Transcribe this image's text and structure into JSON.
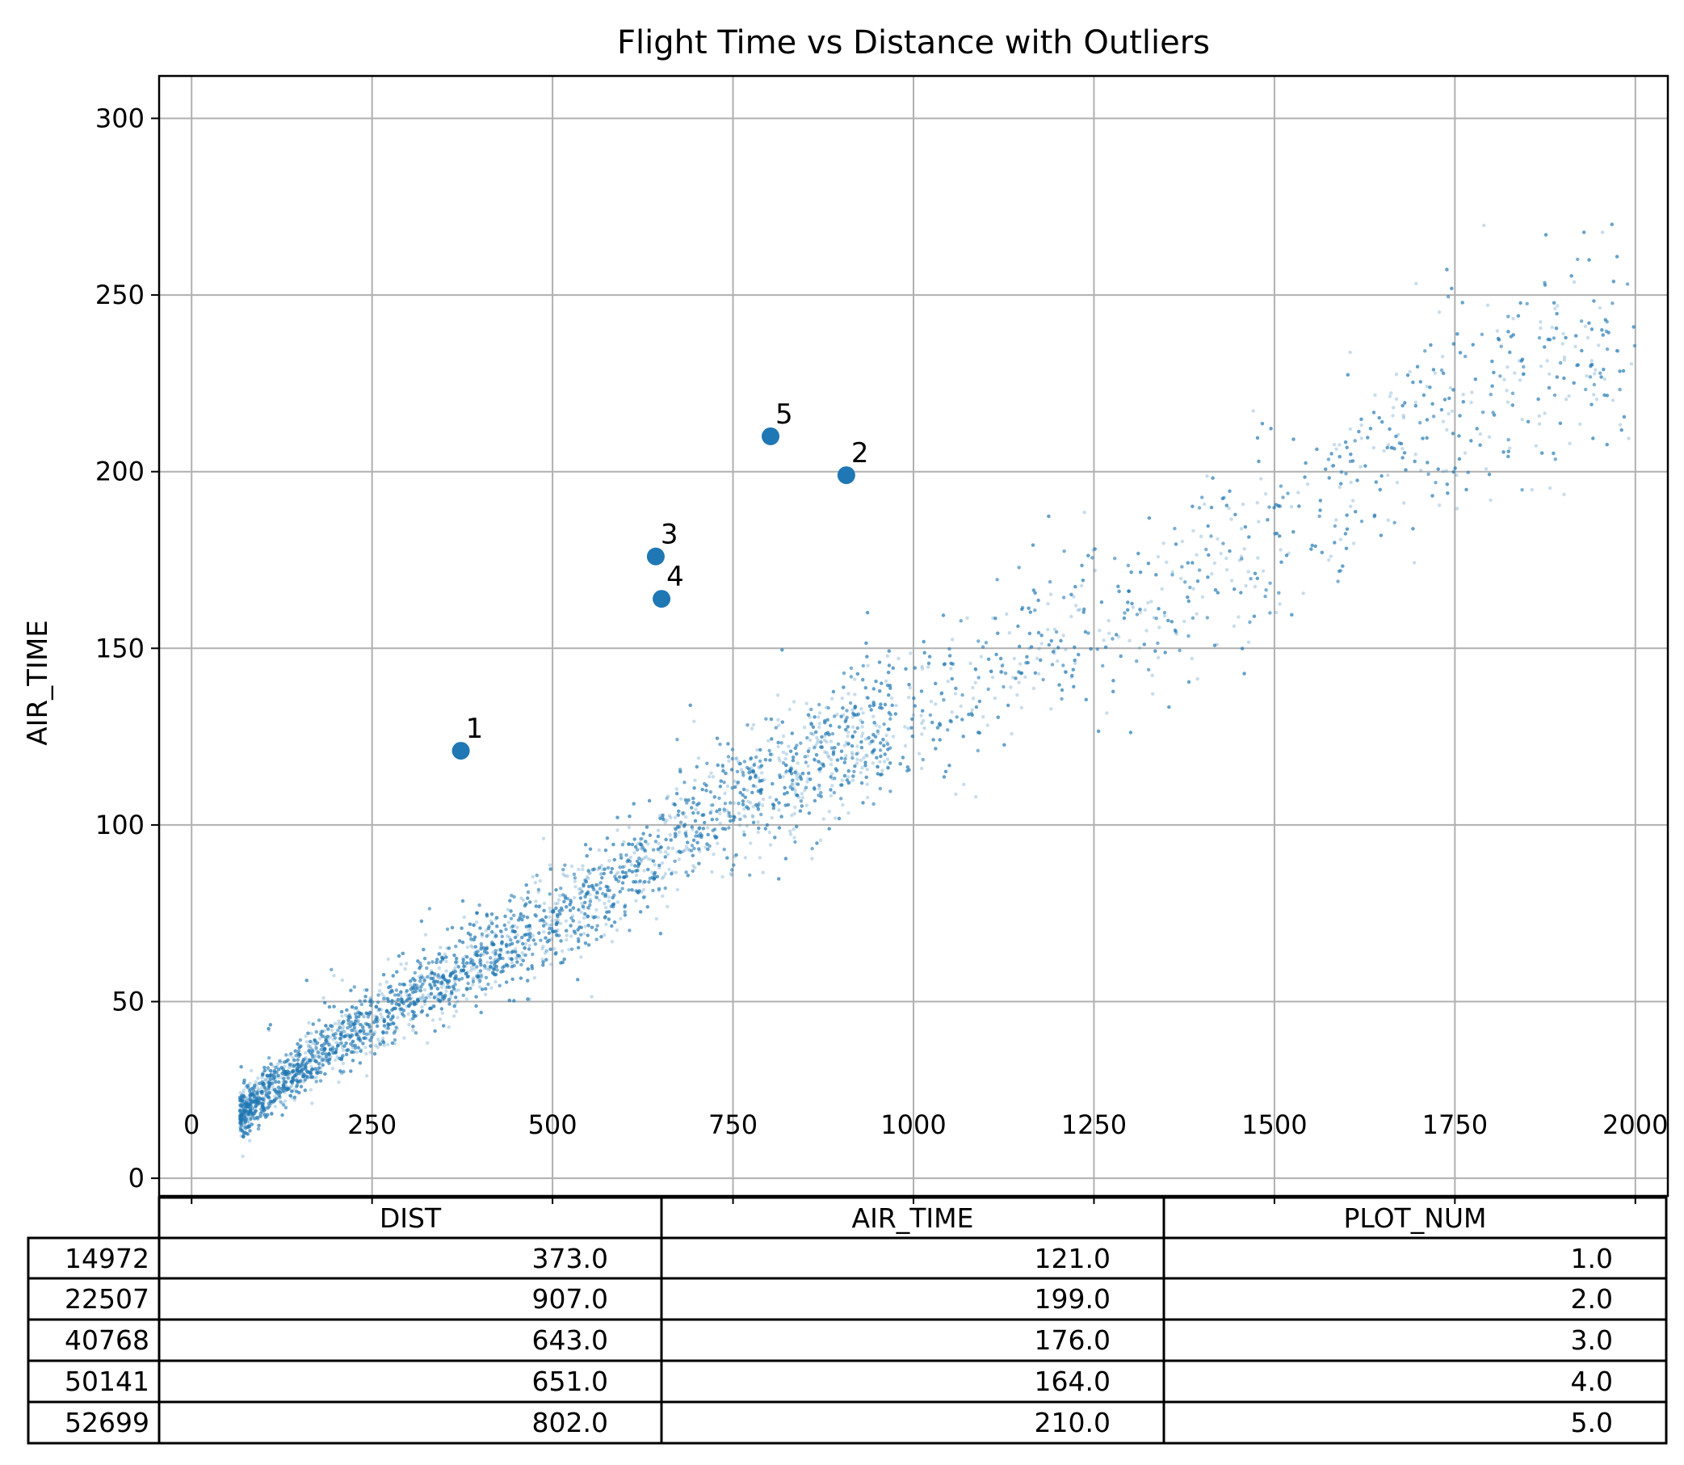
{
  "chart_data": {
    "type": "scatter",
    "title": "Flight Time vs Distance with Outliers",
    "xlabel": "",
    "ylabel": "AIR_TIME",
    "xlim": [
      -45,
      2045
    ],
    "ylim": [
      -5,
      312
    ],
    "xticks": [
      0,
      250,
      500,
      750,
      1000,
      1250,
      1500,
      1750,
      2000
    ],
    "yticks": [
      0,
      50,
      100,
      150,
      200,
      250,
      300
    ],
    "grid": true,
    "colors": {
      "points": "#1f77b4",
      "grid": "#b0b0b0"
    },
    "background_density": {
      "description_of": "dense cloud of flights",
      "anchors": [
        [
          67,
          17
        ],
        [
          100,
          24
        ],
        [
          200,
          38
        ],
        [
          300,
          50
        ],
        [
          400,
          62
        ],
        [
          500,
          72
        ],
        [
          600,
          85
        ],
        [
          700,
          100
        ],
        [
          800,
          110
        ],
        [
          900,
          122
        ],
        [
          1000,
          132
        ],
        [
          1100,
          141
        ],
        [
          1200,
          155
        ],
        [
          1300,
          160
        ],
        [
          1400,
          172
        ],
        [
          1500,
          182
        ],
        [
          1600,
          195
        ],
        [
          1700,
          212
        ],
        [
          1750,
          220
        ],
        [
          1850,
          228
        ],
        [
          1950,
          232
        ],
        [
          2000,
          232
        ]
      ]
    },
    "outliers": [
      {
        "label": "1",
        "x": 373.0,
        "y": 121.0
      },
      {
        "label": "2",
        "x": 907.0,
        "y": 199.0
      },
      {
        "label": "3",
        "x": 643.0,
        "y": 176.0
      },
      {
        "label": "4",
        "x": 651.0,
        "y": 164.0
      },
      {
        "label": "5",
        "x": 802.0,
        "y": 210.0
      }
    ]
  },
  "table": {
    "columns": [
      "DIST",
      "AIR_TIME",
      "PLOT_NUM"
    ],
    "rows": [
      {
        "index": "14972",
        "cells": [
          "373.0",
          "121.0",
          "1.0"
        ]
      },
      {
        "index": "22507",
        "cells": [
          "907.0",
          "199.0",
          "2.0"
        ]
      },
      {
        "index": "40768",
        "cells": [
          "643.0",
          "176.0",
          "3.0"
        ]
      },
      {
        "index": "50141",
        "cells": [
          "651.0",
          "164.0",
          "4.0"
        ]
      },
      {
        "index": "52699",
        "cells": [
          "802.0",
          "210.0",
          "5.0"
        ]
      }
    ]
  }
}
